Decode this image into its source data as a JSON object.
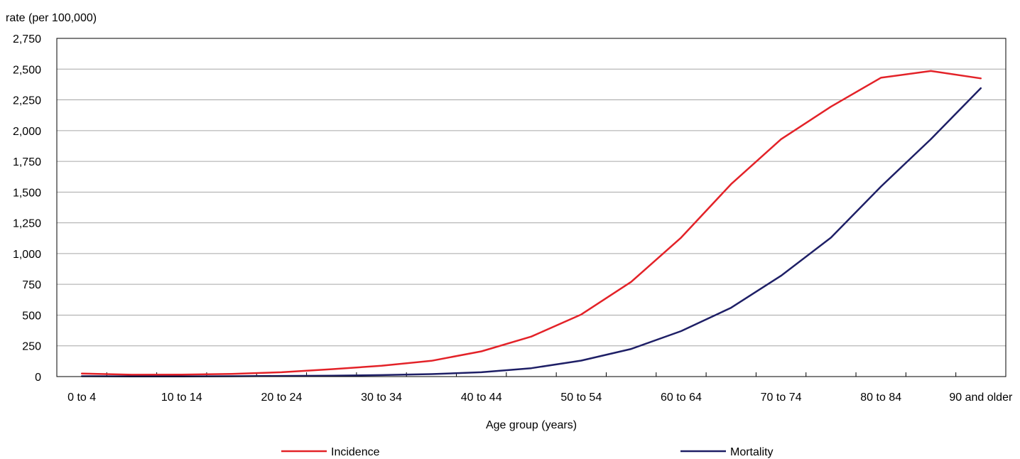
{
  "chart_data": {
    "type": "line",
    "xlabel": "Age group (years)",
    "ylabel": "rate (per 100,000)",
    "ylim": [
      0,
      2750
    ],
    "yticks": [
      0,
      250,
      500,
      750,
      1000,
      1250,
      1500,
      1750,
      2000,
      2250,
      2500,
      2750
    ],
    "ytick_labels": [
      "0",
      "250",
      "500",
      "750",
      "1,000",
      "1,250",
      "1,500",
      "1,750",
      "2,000",
      "2,250",
      "2,500",
      "2,750"
    ],
    "grid": "horizontal",
    "legend_position": "bottom",
    "categories": [
      "0 to 4",
      "5 to 9",
      "10 to 14",
      "15 to 19",
      "20 to 24",
      "25 to 29",
      "30 to 34",
      "35 to 39",
      "40 to 44",
      "45 to 49",
      "50 to 54",
      "55 to 59",
      "60 to 64",
      "65 to 69",
      "70 to 74",
      "75 to 79",
      "80 to 84",
      "85 to 89",
      "90 and older"
    ],
    "category_labels_shown": [
      "0 to 4",
      "",
      "10 to 14",
      "",
      "20 to 24",
      "",
      "30 to 34",
      "",
      "40 to 44",
      "",
      "50 to 54",
      "",
      "60 to 64",
      "",
      "70 to 74",
      "",
      "80 to 84",
      "",
      "90 and older"
    ],
    "series": [
      {
        "name": "Incidence",
        "color": "#e32228",
        "values": [
          25,
          15,
          16,
          22,
          35,
          60,
          88,
          128,
          205,
          325,
          505,
          770,
          1130,
          1565,
          1930,
          2195,
          2430,
          2485,
          2425
        ]
      },
      {
        "name": "Mortality",
        "color": "#1e1f66",
        "values": [
          3,
          2,
          2,
          3,
          5,
          7,
          12,
          20,
          35,
          68,
          130,
          225,
          370,
          560,
          820,
          1130,
          1545,
          1930,
          2345
        ]
      }
    ]
  }
}
